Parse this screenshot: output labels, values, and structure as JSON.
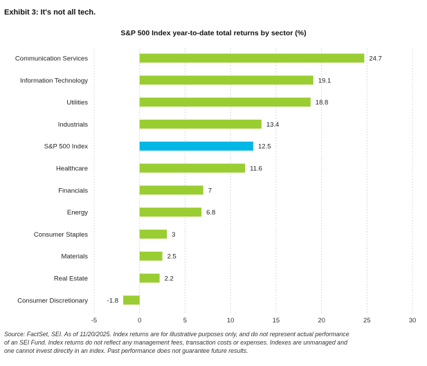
{
  "exhibit_title": "Exhibit 3: It's not all tech.",
  "source_note": "Source: FactSet, SEI. As of 11/20/2025. Index returns are for illustrative purposes only, and do not represent actual performance of an SEI Fund. Index returns do not reflect any management fees, transaction costs or expenses. Indexes are unmanaged and one cannot invest directly in an index. Past performance does not guarantee future results.",
  "colors": {
    "bar": "#9acd32",
    "highlight": "#00b7e6",
    "grid": "#d9d9d9"
  },
  "chart_data": {
    "type": "bar",
    "orientation": "horizontal",
    "title": "S&P 500 Index year-to-date total returns by sector (%)",
    "xlabel": "",
    "ylabel": "",
    "xlim": [
      -5,
      30
    ],
    "xticks": [
      -5,
      0,
      5,
      10,
      15,
      20,
      25,
      30
    ],
    "grid": true,
    "categories": [
      "Communication Services",
      "Information Technology",
      "Utilities",
      "Industrials",
      "S&P 500 Index",
      "Healthcare",
      "Financials",
      "Energy",
      "Consumer Staples",
      "Materials",
      "Real Estate",
      "Consumer Discretionary"
    ],
    "values": [
      24.7,
      19.1,
      18.8,
      13.4,
      12.5,
      11.6,
      7,
      6.8,
      3,
      2.5,
      2.2,
      -1.8
    ],
    "labels": [
      "24.7",
      "19.1",
      "18.8",
      "13.4",
      "12.5",
      "11.6",
      "7",
      "6.8",
      "3",
      "2.5",
      "2.2",
      "-1.8"
    ],
    "highlight_category": "S&P 500 Index"
  }
}
